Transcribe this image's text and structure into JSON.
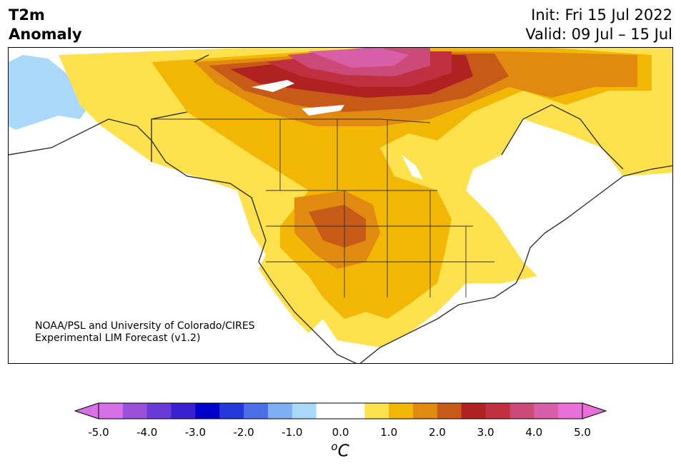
{
  "header": {
    "title_line1": "T2m",
    "title_line2": "Anomaly",
    "init": "Init: Fri 15 Jul 2022",
    "valid": "Valid: 09 Jul – 15 Jul"
  },
  "credit": {
    "line1": "NOAA/PSL and University of Colorado/CIRES",
    "line2": "Experimental LIM Forecast (v1.2)"
  },
  "colorbar": {
    "unit_base": "C",
    "unit_sup": "o",
    "ticks": [
      "-5.0",
      "-4.0",
      "-3.0",
      "-2.0",
      "-1.0",
      "0.0",
      "1.0",
      "2.0",
      "3.0",
      "4.0",
      "5.0"
    ],
    "colors": [
      "#d670e6",
      "#9a50d8",
      "#6a3ad8",
      "#3a1fd0",
      "#0000cc",
      "#2338d8",
      "#4a6fe6",
      "#7db0f2",
      "#aad8fa",
      "#ffffff",
      "#ffffff",
      "#ffe14d",
      "#f2b705",
      "#e08a10",
      "#c85a18",
      "#b02222",
      "#c03040",
      "#cc4a78",
      "#d85ea8",
      "#e870d8"
    ],
    "under_color": "#d670e6",
    "over_color": "#e870d8"
  }
}
